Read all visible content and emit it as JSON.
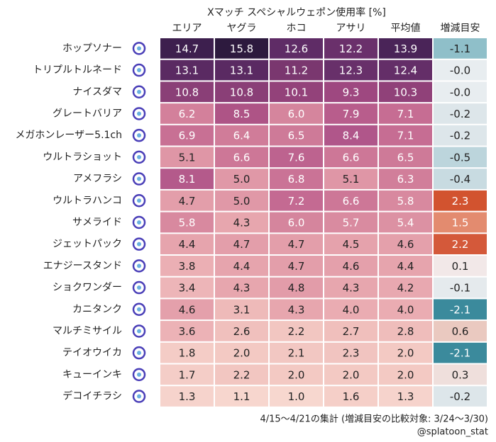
{
  "chart_data": {
    "type": "heatmap",
    "title": "Xマッチ スペシャルウェポン使用率 [%]",
    "categories": [
      "ホップソナー",
      "トリプルトルネード",
      "ナイスダマ",
      "グレートバリア",
      "メガホンレーザー5.1ch",
      "ウルトラショット",
      "アメフラシ",
      "ウルトラハンコ",
      "サメライド",
      "ジェットパック",
      "エナジースタンド",
      "ショクワンダー",
      "カニタンク",
      "マルチミサイル",
      "テイオウイカ",
      "キューインキ",
      "デコイチラシ"
    ],
    "series": [
      {
        "name": "エリア",
        "values": [
          14.7,
          13.1,
          10.8,
          6.2,
          6.9,
          5.1,
          8.1,
          4.7,
          5.8,
          4.4,
          3.8,
          3.4,
          4.6,
          3.6,
          1.8,
          1.7,
          1.3
        ],
        "value_labels": [
          "14.7",
          "13.1",
          "10.8",
          "6.2",
          "6.9",
          "5.1",
          "8.1",
          "4.7",
          "5.8",
          "4.4",
          "3.8",
          "3.4",
          "4.6",
          "3.6",
          "1.8",
          "1.7",
          "1.3"
        ],
        "colors": [
          "#3d1f4e",
          "#5a2a62",
          "#8a3f77",
          "#d3809b",
          "#c87094",
          "#df96a6",
          "#b45a8b",
          "#e39eaa",
          "#d8899f",
          "#e6a4ad",
          "#ebafb4",
          "#edb5b8",
          "#e4a0ab",
          "#ecb2b6",
          "#f4ccc6",
          "#f4cdc7",
          "#f6d3cc"
        ]
      },
      {
        "name": "ヤグラ",
        "values": [
          15.8,
          13.1,
          10.8,
          8.5,
          6.4,
          6.6,
          5.0,
          5.0,
          4.3,
          4.7,
          4.4,
          4.3,
          3.1,
          2.6,
          2.0,
          2.2,
          1.1
        ],
        "value_labels": [
          "15.8",
          "13.1",
          "10.8",
          "8.5",
          "6.4",
          "6.6",
          "5.0",
          "5.0",
          "4.3",
          "4.7",
          "4.4",
          "4.3",
          "3.1",
          "2.6",
          "2.0",
          "2.2",
          "1.1"
        ],
        "colors": [
          "#2d1a3e",
          "#5a2a62",
          "#8a3f77",
          "#ae5486",
          "#d07c99",
          "#cd7797",
          "#e098a7",
          "#e098a7",
          "#e7a6ae",
          "#e39eaa",
          "#e6a4ad",
          "#e7a6ae",
          "#eebab9",
          "#f0c0bd",
          "#f3c9c3",
          "#f2c6c1",
          "#f7d6ce"
        ]
      },
      {
        "name": "ホコ",
        "values": [
          12.6,
          11.2,
          10.1,
          6.0,
          6.5,
          7.6,
          6.8,
          7.2,
          6.0,
          4.7,
          4.7,
          4.8,
          4.3,
          2.2,
          2.1,
          2.0,
          1.0
        ],
        "value_labels": [
          "12.6",
          "11.2",
          "10.1",
          "6.0",
          "6.5",
          "7.6",
          "6.8",
          "7.2",
          "6.0",
          "4.7",
          "4.7",
          "4.8",
          "4.3",
          "2.2",
          "2.1",
          "2.0",
          "1.0"
        ],
        "colors": [
          "#5f2c66",
          "#7a376f",
          "#93427a",
          "#d5859d",
          "#ce7a98",
          "#bd638f",
          "#ca7396",
          "#c46a92",
          "#d5859d",
          "#e39eaa",
          "#e39eaa",
          "#e29ca9",
          "#e7a6ae",
          "#f2c6c1",
          "#f2c7c2",
          "#f3c9c3",
          "#f7d7cf"
        ]
      },
      {
        "name": "アサリ",
        "values": [
          12.2,
          12.3,
          9.3,
          7.9,
          8.4,
          6.6,
          5.1,
          6.6,
          5.7,
          4.5,
          4.6,
          4.3,
          4.0,
          2.7,
          2.3,
          2.0,
          1.6
        ],
        "value_labels": [
          "12.2",
          "12.3",
          "9.3",
          "7.9",
          "8.4",
          "6.6",
          "5.1",
          "6.6",
          "5.7",
          "4.5",
          "4.6",
          "4.3",
          "4.0",
          "2.7",
          "2.3",
          "2.0",
          "1.6"
        ],
        "colors": [
          "#6a306b",
          "#68306a",
          "#9e4880",
          "#b85d8c",
          "#b0568a",
          "#cd7797",
          "#df96a6",
          "#cd7797",
          "#d98ba0",
          "#e5a2ac",
          "#e4a0ab",
          "#e7a6ae",
          "#eaacb2",
          "#f0bfbc",
          "#f1c4c0",
          "#f3c9c3",
          "#f5cfc8"
        ]
      },
      {
        "name": "平均値",
        "values": [
          13.9,
          12.4,
          10.3,
          7.1,
          7.1,
          6.5,
          6.3,
          5.8,
          5.4,
          4.6,
          4.4,
          4.2,
          4.0,
          2.8,
          2.0,
          2.0,
          1.3
        ],
        "value_labels": [
          "13.9",
          "12.4",
          "10.3",
          "7.1",
          "7.1",
          "6.5",
          "6.3",
          "5.8",
          "5.4",
          "4.6",
          "4.4",
          "4.2",
          "4.0",
          "2.8",
          "2.0",
          "2.0",
          "1.3"
        ],
        "colors": [
          "#4a2458",
          "#642e68",
          "#904179",
          "#c66d93",
          "#c66d93",
          "#ce7a98",
          "#d17e9a",
          "#d8899f",
          "#dc91a3",
          "#e4a0ab",
          "#e6a4ad",
          "#e8a8b0",
          "#eaacb2",
          "#efbdbb",
          "#f3c9c3",
          "#f3c9c3",
          "#f6d3cc"
        ]
      },
      {
        "name": "増減目安",
        "values": [
          -1.1,
          -0.0,
          -0.0,
          -0.2,
          -0.2,
          -0.5,
          -0.4,
          2.3,
          1.5,
          2.2,
          0.1,
          -0.1,
          -2.1,
          0.6,
          -2.1,
          0.3,
          -0.2
        ],
        "value_labels": [
          "-1.1",
          "-0.0",
          "-0.0",
          "-0.2",
          "-0.2",
          "-0.5",
          "-0.4",
          "2.3",
          "1.5",
          "2.2",
          "0.1",
          "-0.1",
          "-2.1",
          "0.6",
          "-2.1",
          "0.3",
          "-0.2"
        ],
        "colors": [
          "#8fbfc9",
          "#e8edf0",
          "#e8edf0",
          "#dde6ea",
          "#dde6ea",
          "#bcd5dc",
          "#c8dbe1",
          "#d2532f",
          "#e38b6f",
          "#d4593a",
          "#f2e8e8",
          "#e5eaed",
          "#3b8a9c",
          "#eac9c0",
          "#3b8a9c",
          "#efdfdc",
          "#dde6ea"
        ]
      }
    ],
    "notes": [
      "4/15〜4/21の集計 (増減目安の比較対象: 3/24〜3/30)",
      "@splatoon_stat"
    ]
  }
}
